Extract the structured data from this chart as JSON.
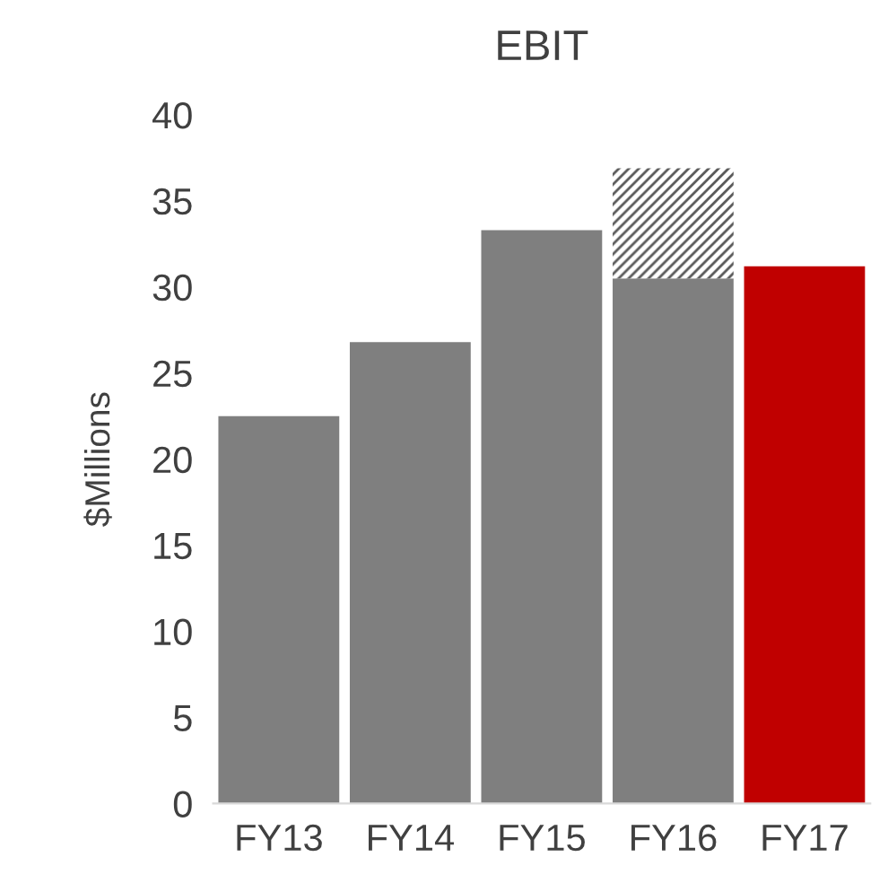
{
  "chart_data": {
    "type": "bar",
    "title": "EBIT",
    "ylabel": "$Millions",
    "categories": [
      "FY13",
      "FY14",
      "FY15",
      "FY16",
      "FY17"
    ],
    "stacked": true,
    "series": [
      {
        "colors": [
          "#7f7f7f",
          "#7f7f7f",
          "#7f7f7f",
          "#7f7f7f",
          "#c00000"
        ],
        "values": [
          22.5,
          26.8,
          33.3,
          30.5,
          31.2
        ]
      },
      {
        "color": "#595959",
        "values": [
          null,
          null,
          null,
          6.4,
          null
        ]
      }
    ],
    "ylim": [
      0,
      40
    ],
    "yticks": [
      0,
      5,
      10,
      15,
      20,
      25,
      30,
      35,
      40
    ],
    "grid": false,
    "legend": false
  }
}
